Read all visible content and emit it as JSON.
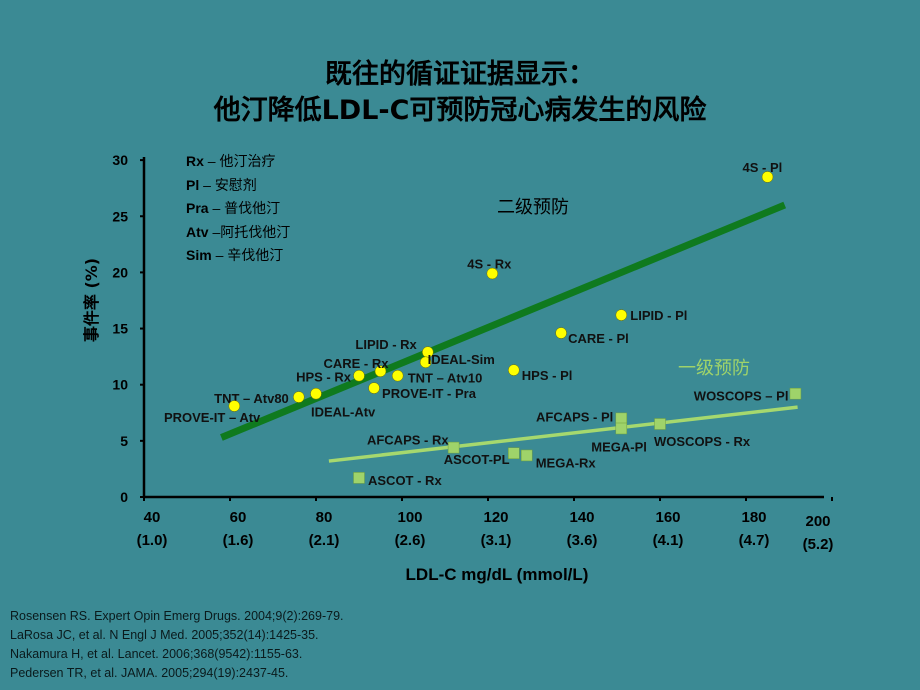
{
  "title": {
    "line1": "既往的循证证据显示：",
    "line2": "他汀降低LDL-C可预防冠心病发生的风险"
  },
  "legend_abbrev": [
    {
      "abbr": "Rx",
      "sep": " – ",
      "meaning": "他汀治疗"
    },
    {
      "abbr": "Pl",
      "sep": " – ",
      "meaning": "安慰剂"
    },
    {
      "abbr": "Pra",
      "sep": " – ",
      "meaning": "普伐他汀"
    },
    {
      "abbr": "Atv",
      "sep": " –",
      "meaning": "阿托伐他汀"
    },
    {
      "abbr": "Sim",
      "sep": " – ",
      "meaning": "辛伐他汀"
    }
  ],
  "references": [
    "Rosensen RS. Expert Opin Emerg Drugs. 2004;9(2):269-79.",
    "LaRosa JC, et al. N Engl J Med. 2005;352(14):1425-35.",
    "Nakamura H, et al. Lancet. 2006;368(9542):1155-63.",
    "Pedersen TR, et al. JAMA. 2005;294(19):2437-45."
  ],
  "chart_data": {
    "type": "scatter",
    "xlabel": "LDL-C mg/dL (mmol/L)",
    "ylabel": "事件率 (%)",
    "xlim": [
      40,
      200
    ],
    "ylim": [
      0,
      30
    ],
    "x_ticks": [
      {
        "value": 40,
        "label": "40",
        "sub": "(1.0)"
      },
      {
        "value": 60,
        "label": "60",
        "sub": "(1.6)"
      },
      {
        "value": 80,
        "label": "80",
        "sub": "(2.1)"
      },
      {
        "value": 100,
        "label": "100",
        "sub": "(2.6)"
      },
      {
        "value": 120,
        "label": "120",
        "sub": "(3.1)"
      },
      {
        "value": 140,
        "label": "140",
        "sub": "(3.6)"
      },
      {
        "value": 160,
        "label": "160",
        "sub": "(4.1)"
      },
      {
        "value": 180,
        "label": "180",
        "sub": "(4.7)"
      },
      {
        "value": 200,
        "label": "200",
        "sub": "(5.2)"
      }
    ],
    "y_ticks": [
      0,
      5,
      10,
      15,
      20,
      25,
      30
    ],
    "grid": false,
    "series": [
      {
        "name": "二级预防",
        "marker": "circle",
        "color": "#ffff00",
        "line_color": "#0f7a1e",
        "trend": {
          "x": [
            58,
            189
          ],
          "y": [
            5.3,
            26.0
          ]
        },
        "points": [
          {
            "label": "4S - Pl",
            "x": 185,
            "y": 28.5
          },
          {
            "label": "4S - Rx",
            "x": 121,
            "y": 19.9
          },
          {
            "label": "LIPID - Pl",
            "x": 151,
            "y": 16.2
          },
          {
            "label": "CARE - Pl",
            "x": 137,
            "y": 14.6
          },
          {
            "label": "HPS - Pl",
            "x": 126,
            "y": 11.3
          },
          {
            "label": "LIPID - Rx",
            "x": 106,
            "y": 12.9
          },
          {
            "label": "IDEAL-Sim",
            "x": 105.5,
            "y": 12.0
          },
          {
            "label": "TNT – Atv10",
            "x": 99,
            "y": 10.8
          },
          {
            "label": "CARE - Rx",
            "x": 95,
            "y": 11.2
          },
          {
            "label": "HPS - Rx",
            "x": 90,
            "y": 10.8
          },
          {
            "label": "PROVE-IT - Pra",
            "x": 93.5,
            "y": 9.7
          },
          {
            "label": "IDEAL-Atv",
            "x": 80,
            "y": 9.2
          },
          {
            "label": "TNT – Atv80",
            "x": 76,
            "y": 8.9
          },
          {
            "label": "PROVE-IT – Atv",
            "x": 61,
            "y": 8.1
          }
        ]
      },
      {
        "name": "一级预防",
        "marker": "square",
        "color": "#9fd36a",
        "line_color": "#a6d86e",
        "trend": {
          "x": [
            83,
            192
          ],
          "y": [
            3.2,
            8.0
          ]
        },
        "points": [
          {
            "label": "WOSCOPS – Pl",
            "x": 191.5,
            "y": 9.2
          },
          {
            "label": "AFCAPS - Pl",
            "x": 151,
            "y": 7.0
          },
          {
            "label": "MEGA-Pl",
            "x": 151,
            "y": 6.1
          },
          {
            "label": "WOSCOPS - Rx",
            "x": 160,
            "y": 6.5
          },
          {
            "label": "AFCAPS - Rx",
            "x": 112,
            "y": 4.4
          },
          {
            "label": "ASCOT-PL",
            "x": 126,
            "y": 3.9
          },
          {
            "label": "MEGA-Rx",
            "x": 129,
            "y": 3.7
          },
          {
            "label": "ASCOT - Rx",
            "x": 90,
            "y": 1.7
          }
        ]
      }
    ]
  }
}
